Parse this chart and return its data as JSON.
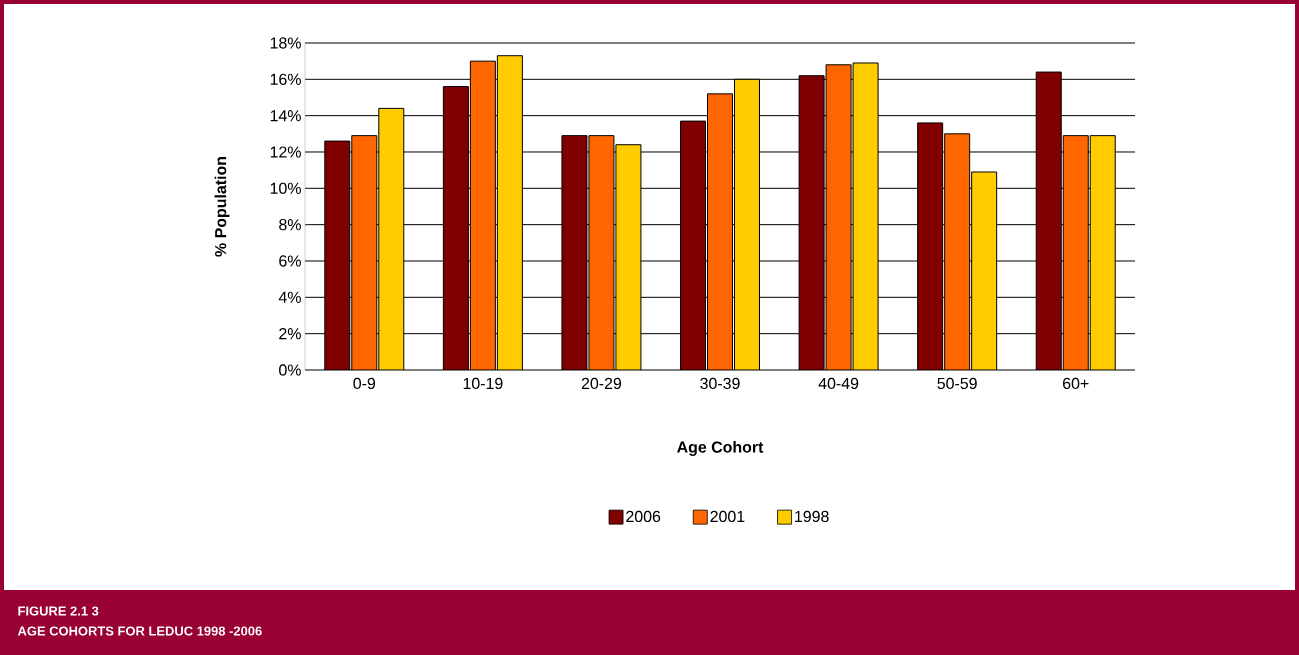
{
  "chart_data": {
    "type": "bar",
    "title": "FIGURE 2.1 3",
    "subtitle": "AGE COHORTS FOR LEDUC 1998 -2006",
    "xlabel": "Age Cohort",
    "ylabel": "% Population",
    "categories": [
      "0-9",
      "10-19",
      "20-29",
      "30-39",
      "40-49",
      "50-59",
      "60+"
    ],
    "series": [
      {
        "name": "2006",
        "color": "#800000",
        "values": [
          12.6,
          15.6,
          12.9,
          13.7,
          16.2,
          13.6,
          16.4
        ]
      },
      {
        "name": "2001",
        "color": "#ff6600",
        "values": [
          12.9,
          17.0,
          12.9,
          15.2,
          16.8,
          13.0,
          12.9
        ]
      },
      {
        "name": "1998",
        "color": "#ffcc00",
        "values": [
          14.4,
          17.3,
          12.4,
          16.0,
          16.9,
          10.9,
          12.9
        ]
      }
    ],
    "ylim": [
      0,
      18
    ],
    "yticks": [
      {
        "value": 0,
        "label": "0%"
      },
      {
        "value": 2,
        "label": "2%"
      },
      {
        "value": 4,
        "label": "4%"
      },
      {
        "value": 6,
        "label": "6%"
      },
      {
        "value": 8,
        "label": "8%"
      },
      {
        "value": 10,
        "label": "10%"
      },
      {
        "value": 12,
        "label": "12%"
      },
      {
        "value": 14,
        "label": "14%"
      },
      {
        "value": 16,
        "label": "16%"
      },
      {
        "value": 18,
        "label": "18%"
      }
    ],
    "grid": "y",
    "legend": "bottom"
  }
}
